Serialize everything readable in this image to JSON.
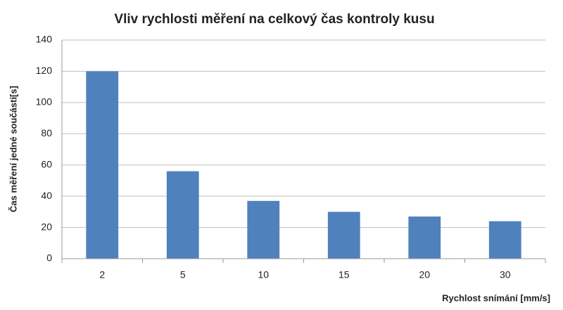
{
  "chart_data": {
    "type": "bar",
    "title": "Vliv rychlosti měření na celkový čas kontroly kusu",
    "x_label": "Rychlost snímání [mm/s]",
    "y_label": "Čas měření jedné součásti[s]",
    "categories": [
      "2",
      "5",
      "10",
      "15",
      "20",
      "30"
    ],
    "values": [
      120,
      56,
      37,
      30,
      27,
      24
    ],
    "color": "#4f81bd",
    "ylim": [
      0,
      140
    ],
    "yticks": [
      0,
      20,
      40,
      60,
      80,
      100,
      120,
      140
    ],
    "grid": true
  }
}
